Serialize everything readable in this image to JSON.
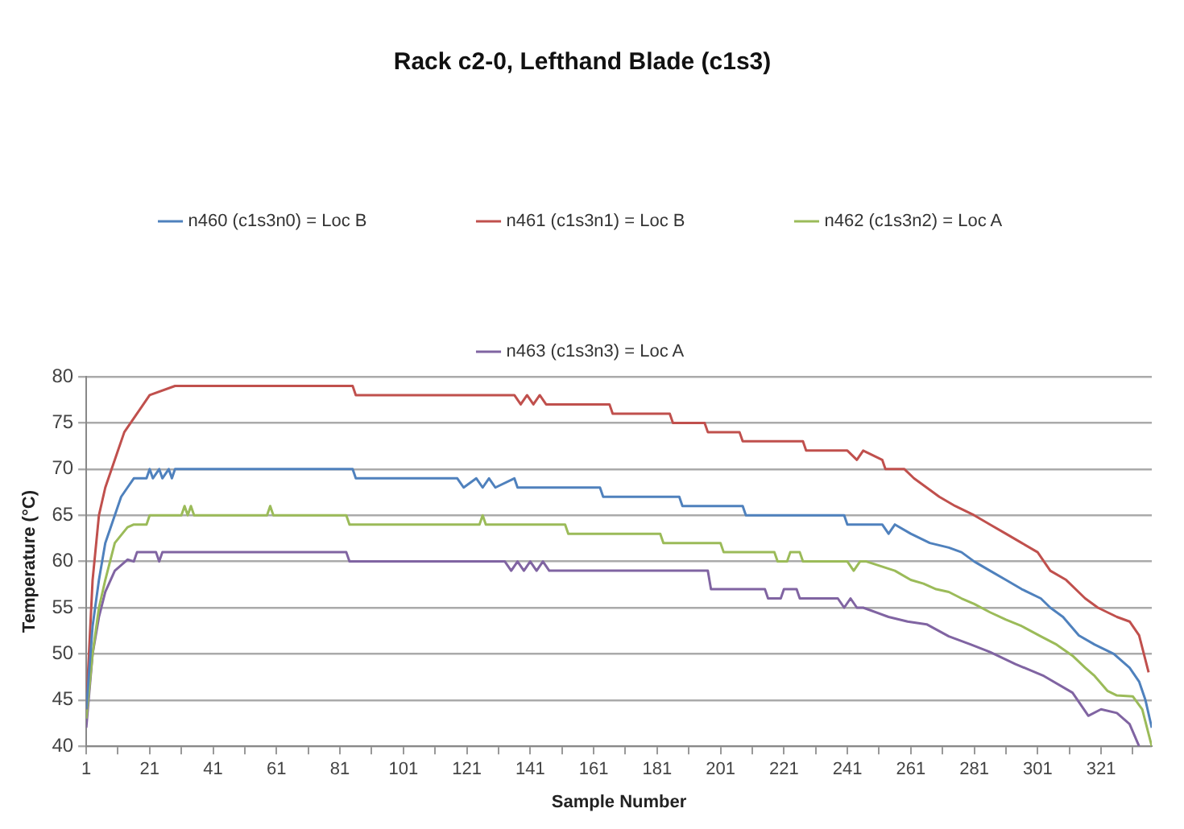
{
  "chart_data": {
    "type": "line",
    "title": "Rack c2-0, Lefthand Blade (c1s3)",
    "xlabel": "Sample Number",
    "ylabel": "Temperature (°C)",
    "xlim": [
      1,
      337
    ],
    "ylim": [
      40,
      80
    ],
    "xticks": [
      1,
      {
        "value": 11,
        "label": null
      },
      21,
      {
        "value": 31,
        "label": null
      },
      41,
      {
        "value": 51,
        "label": null
      },
      61,
      {
        "value": 71,
        "label": null
      },
      81,
      {
        "value": 91,
        "label": null
      },
      101,
      {
        "value": 111,
        "label": null
      },
      121,
      {
        "value": 131,
        "label": null
      },
      141,
      {
        "value": 151,
        "label": null
      },
      161,
      {
        "value": 171,
        "label": null
      },
      181,
      {
        "value": 191,
        "label": null
      },
      201,
      {
        "value": 211,
        "label": null
      },
      221,
      {
        "value": 231,
        "label": null
      },
      241,
      {
        "value": 251,
        "label": null
      },
      261,
      {
        "value": 271,
        "label": null
      },
      281,
      {
        "value": 291,
        "label": null
      },
      301,
      {
        "value": 311,
        "label": null
      },
      321,
      {
        "value": 331,
        "label": null
      }
    ],
    "yticks": [
      40,
      45,
      50,
      55,
      60,
      65,
      70,
      75,
      80
    ],
    "grid": "y",
    "legend": "top",
    "marker": "none",
    "line_style": "solid",
    "series": [
      {
        "name": "n460 (c1s3n0) = Loc B",
        "color": "#4f81bd",
        "x": [
          1,
          3,
          5,
          7,
          9,
          10,
          12,
          14,
          16,
          20,
          21,
          22,
          24,
          25,
          27,
          28,
          29,
          85,
          86,
          118,
          120,
          124,
          126,
          128,
          130,
          136,
          137,
          163,
          164,
          188,
          189,
          208,
          209,
          240,
          241,
          252,
          254,
          256,
          261,
          267,
          273,
          277,
          281,
          286,
          291,
          296,
          302,
          305,
          309,
          314,
          319,
          325,
          330,
          333,
          335,
          337
        ],
        "values": [
          44,
          53,
          58,
          62,
          64,
          65,
          67,
          68,
          69,
          69,
          70,
          69,
          70,
          69,
          70,
          69,
          70,
          70,
          69,
          69,
          68,
          69,
          68,
          69,
          68,
          69,
          68,
          68,
          67,
          67,
          66,
          66,
          65,
          65,
          64,
          64,
          63,
          64,
          63,
          62,
          61.5,
          61,
          60,
          59,
          58,
          57,
          56,
          55,
          54,
          52,
          51,
          50,
          48.5,
          47,
          45,
          42
        ]
      },
      {
        "name": "n461 (c1s3n1) = Loc B",
        "color": "#c0504d",
        "x": [
          1,
          3,
          5,
          7,
          9,
          11,
          13,
          15,
          17,
          19,
          21,
          29,
          85,
          86,
          136,
          138,
          140,
          142,
          144,
          146,
          150,
          166,
          167,
          185,
          186,
          196,
          197,
          207,
          208,
          227,
          228,
          241,
          244,
          246,
          252,
          253,
          259,
          262,
          266,
          270,
          275,
          281,
          286,
          291,
          296,
          301,
          305,
          310,
          316,
          320,
          323,
          326,
          330,
          333,
          336
        ],
        "values": [
          44,
          58,
          65,
          68,
          70,
          72,
          74,
          75,
          76,
          77,
          78,
          79,
          79,
          78,
          78,
          77,
          78,
          77,
          78,
          77,
          77,
          77,
          76,
          76,
          75,
          75,
          74,
          74,
          73,
          73,
          72,
          72,
          71,
          72,
          71,
          70,
          70,
          69,
          68,
          67,
          66,
          65,
          64,
          63,
          62,
          61,
          59,
          58,
          56,
          55,
          54.5,
          54,
          53.5,
          52,
          48
        ]
      },
      {
        "name": "n462 (c1s3n2) = Loc A",
        "color": "#9bbb59",
        "x": [
          1,
          3,
          5,
          7,
          10,
          14,
          16,
          20,
          21,
          31,
          32,
          33,
          34,
          35,
          58,
          59,
          60,
          83,
          84,
          125,
          126,
          127,
          152,
          153,
          182,
          183,
          201,
          202,
          218,
          219,
          222,
          223,
          226,
          227,
          241,
          243,
          245,
          247,
          256,
          261,
          265,
          269,
          273,
          277,
          281,
          286,
          291,
          296,
          302,
          307,
          312,
          316,
          319,
          323,
          326,
          331,
          334,
          337
        ],
        "values": [
          43,
          50,
          55,
          58,
          62,
          63.7,
          64,
          64,
          65,
          65,
          66,
          65,
          66,
          65,
          65,
          66,
          65,
          65,
          64,
          64,
          65,
          64,
          64,
          63,
          63,
          62,
          62,
          61,
          61,
          60,
          60,
          61,
          61,
          60,
          60,
          59,
          60,
          60,
          59,
          58,
          57.6,
          57,
          56.7,
          56,
          55.4,
          54.5,
          53.7,
          53,
          51.9,
          51,
          49.8,
          48.5,
          47.6,
          46,
          45.5,
          45.4,
          44,
          40
        ]
      },
      {
        "name": "n463 (c1s3n3) = Loc A",
        "color": "#8064a2",
        "x": [
          1,
          3,
          5,
          7,
          10,
          14,
          16,
          17,
          23,
          24,
          25,
          26,
          83,
          84,
          133,
          135,
          137,
          139,
          141,
          143,
          145,
          147,
          197,
          198,
          215,
          216,
          220,
          221,
          225,
          226,
          238,
          240,
          242,
          244,
          246,
          254,
          260,
          266,
          273,
          280,
          286,
          294,
          303,
          312,
          317,
          321,
          326,
          330,
          333
        ],
        "values": [
          42,
          50,
          54,
          56.7,
          59,
          60.2,
          60,
          61,
          61,
          60,
          61,
          61,
          61,
          60,
          60,
          59,
          60,
          59,
          60,
          59,
          60,
          59,
          59,
          57,
          57,
          56,
          56,
          57,
          57,
          56,
          56,
          55,
          56,
          55,
          55,
          54,
          53.5,
          53.2,
          51.9,
          51,
          50.2,
          48.9,
          47.6,
          45.8,
          43.3,
          44,
          43.6,
          42.4,
          40
        ]
      }
    ]
  }
}
